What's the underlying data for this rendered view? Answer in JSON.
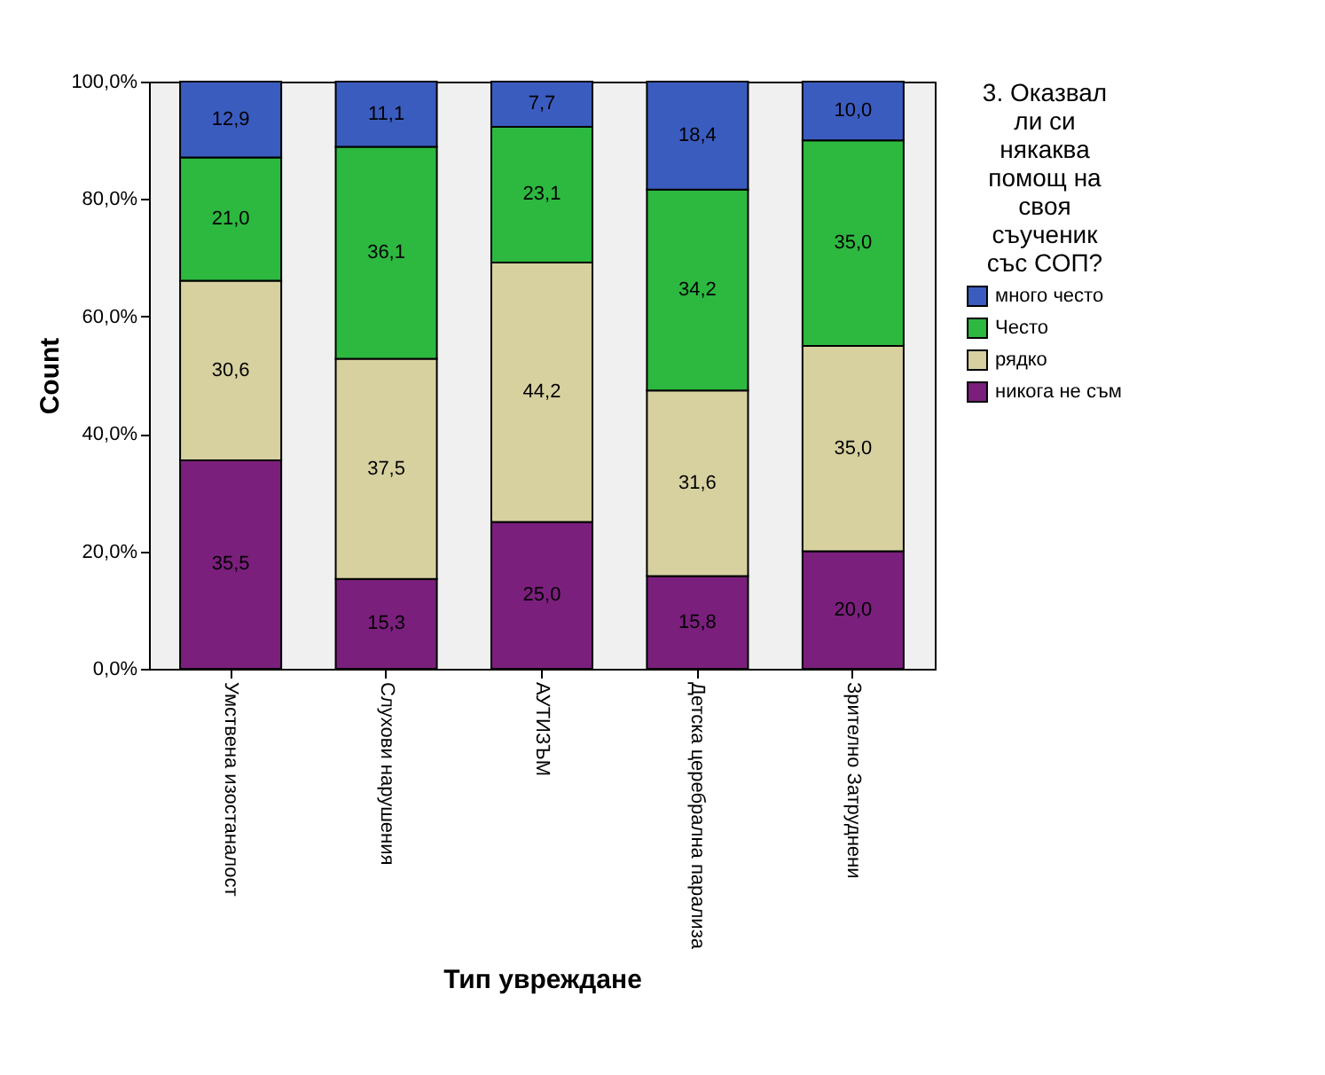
{
  "chart_data": {
    "type": "bar",
    "stacked": true,
    "xlabel": "Тип увреждане",
    "ylabel": "Count",
    "legend_title": "3. Оказвал ли си някаква помощ на своя съученик със СОП?",
    "legend": "right",
    "grid": false,
    "categories": [
      "Умствена изостаналост",
      "Слухови нарушения",
      "АУТИЗЪМ",
      "Детска церебрална парализа",
      "Зрително Затруднени"
    ],
    "ylim": [
      0,
      100
    ],
    "yticks": [
      {
        "value": 0,
        "label": "0,0%"
      },
      {
        "value": 20,
        "label": "20,0%"
      },
      {
        "value": 40,
        "label": "40,0%"
      },
      {
        "value": 60,
        "label": "60,0%"
      },
      {
        "value": 80,
        "label": "80,0%"
      },
      {
        "value": 100,
        "label": "100,0%"
      }
    ],
    "series": [
      {
        "name": "никога не съм",
        "color": "#7b1f7d",
        "values": [
          35.5,
          15.3,
          25.0,
          15.8,
          20.0
        ],
        "value_labels": [
          "35,5",
          "15,3",
          "25,0",
          "15,8",
          "20,0"
        ]
      },
      {
        "name": "рядко",
        "color": "#d7d1a0",
        "values": [
          30.6,
          37.5,
          44.2,
          31.6,
          35.0
        ],
        "value_labels": [
          "30,6",
          "37,5",
          "44,2",
          "31,6",
          "35,0"
        ]
      },
      {
        "name": "Често",
        "color": "#2db840",
        "values": [
          21.0,
          36.1,
          23.1,
          34.2,
          35.0
        ],
        "value_labels": [
          "21,0",
          "36,1",
          "23,1",
          "34,2",
          "35,0"
        ]
      },
      {
        "name": "много често",
        "color": "#3b5cbf",
        "values": [
          12.9,
          11.1,
          7.7,
          18.4,
          10.0
        ],
        "value_labels": [
          "12,9",
          "11,1",
          "7,7",
          "18,4",
          "10,0"
        ]
      }
    ]
  }
}
